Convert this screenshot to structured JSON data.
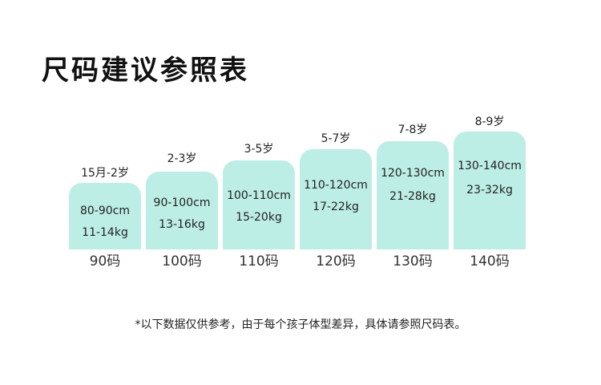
{
  "title": "尺码建议参照表",
  "columns": [
    {
      "age": "15月-2岁",
      "height": "80-90cm",
      "weight": "11-14kg",
      "size": "90码"
    },
    {
      "age": "2-3岁",
      "height": "90-100cm",
      "weight": "13-16kg",
      "size": "100码"
    },
    {
      "age": "3-5岁",
      "height": "100-110cm",
      "weight": "15-20kg",
      "size": "110码"
    },
    {
      "age": "5-7岁",
      "height": "110-120cm",
      "weight": "17-22kg",
      "size": "120码"
    },
    {
      "age": "7-8岁",
      "height": "120-130cm",
      "weight": "21-28kg",
      "size": "130码"
    },
    {
      "age": "8-9岁",
      "height": "130-140cm",
      "weight": "23-32kg",
      "size": "140码"
    }
  ],
  "footnote": "*以下数据仅供参考，由于每个孩子体型差异，具体请参照尺码表。",
  "colors": {
    "bar_fill": "#bdeee6"
  }
}
